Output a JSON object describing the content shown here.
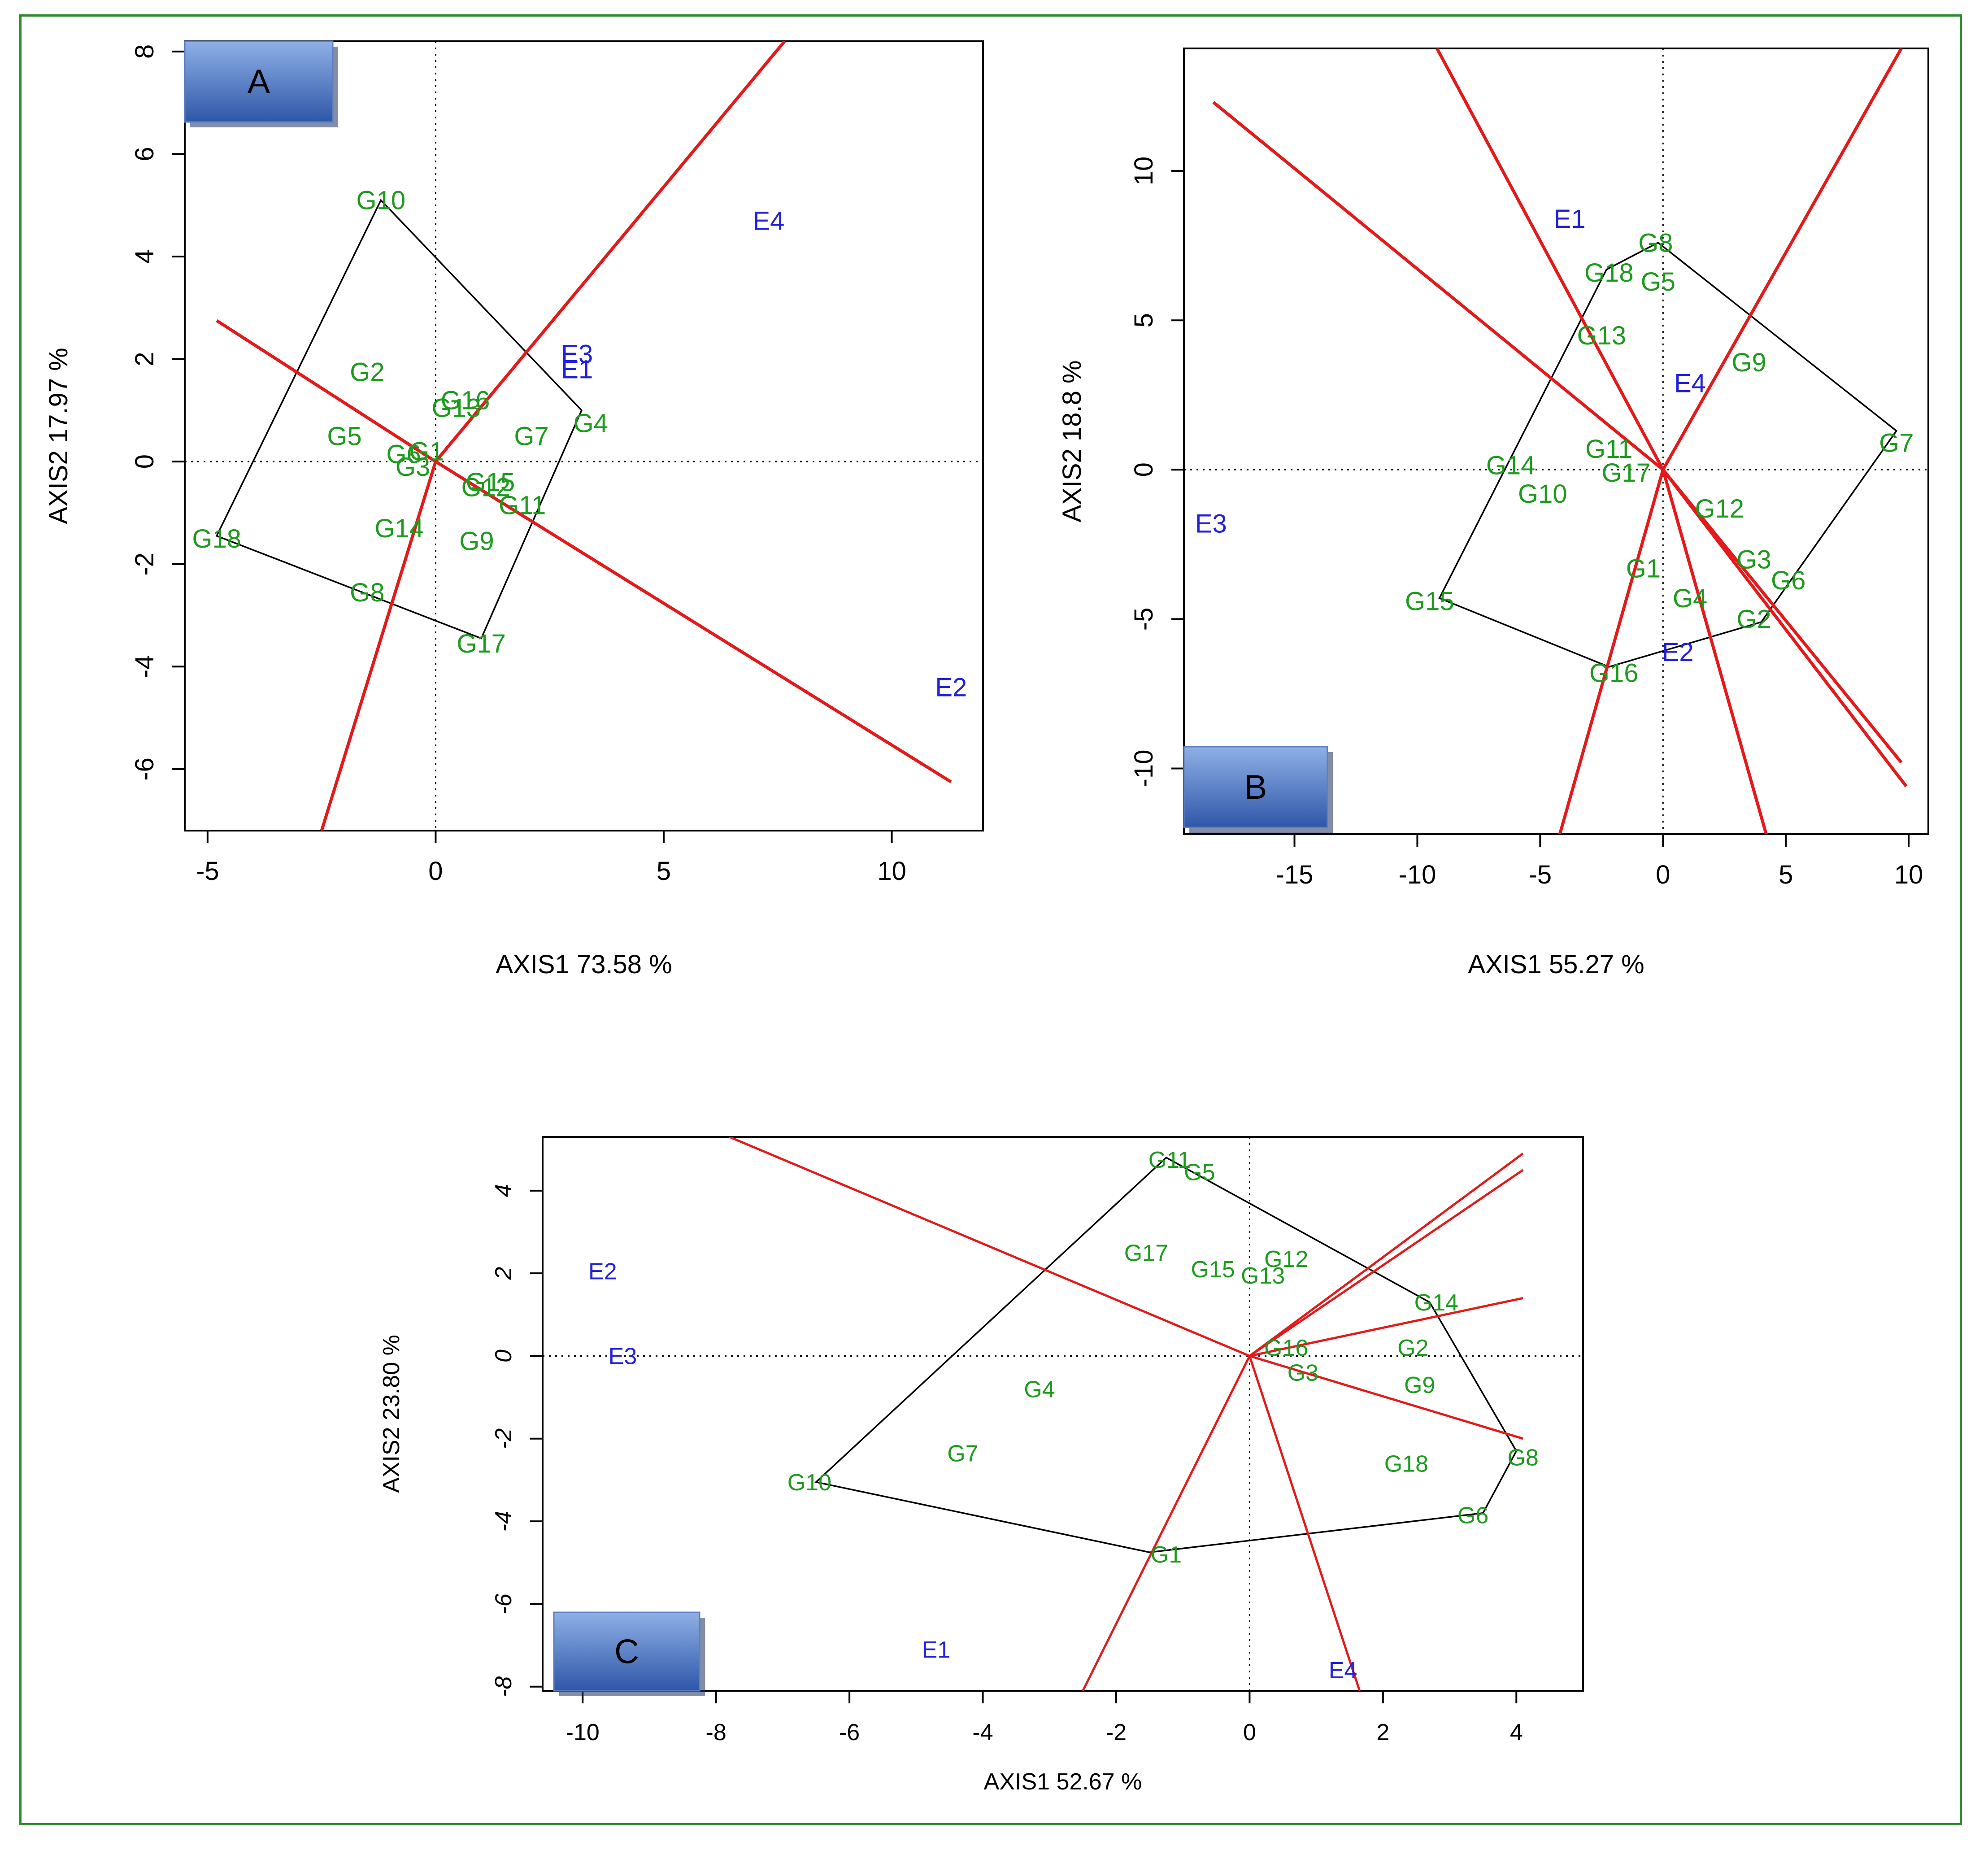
{
  "colors": {
    "frame": "#2e8b2e",
    "genotype": "#1e9a1e",
    "environment": "#2020dd",
    "vector": "#e41a1a",
    "hull": "#000000",
    "badge_top": "#8fb0e6",
    "badge_bottom": "#2e57a8"
  },
  "chart_data": [
    {
      "panel": "A",
      "type": "scatter",
      "subtype": "GGE biplot which-won-where",
      "xlabel": "AXIS1 73.58 %",
      "ylabel": "AXIS2 17.97 %",
      "xlim": [
        -5.5,
        12.0
      ],
      "ylim": [
        -7.2,
        8.2
      ],
      "xticks": [
        -5,
        0,
        5,
        10
      ],
      "yticks": [
        -6,
        -4,
        -2,
        0,
        2,
        4,
        6,
        8
      ],
      "genotypes": [
        {
          "label": "G10",
          "x": -1.2,
          "y": 5.1
        },
        {
          "label": "G2",
          "x": -1.5,
          "y": 1.75
        },
        {
          "label": "G16",
          "x": 0.65,
          "y": 1.2
        },
        {
          "label": "G13",
          "x": 0.45,
          "y": 1.05
        },
        {
          "label": "G5",
          "x": -2.0,
          "y": 0.5
        },
        {
          "label": "G7",
          "x": 2.1,
          "y": 0.5
        },
        {
          "label": "G4",
          "x": 3.4,
          "y": 0.75
        },
        {
          "label": "G6",
          "x": -0.7,
          "y": 0.15
        },
        {
          "label": "G1",
          "x": -0.2,
          "y": 0.2
        },
        {
          "label": "G3",
          "x": -0.5,
          "y": -0.1
        },
        {
          "label": "G15",
          "x": 1.2,
          "y": -0.4
        },
        {
          "label": "G12",
          "x": 1.1,
          "y": -0.5
        },
        {
          "label": "G11",
          "x": 1.9,
          "y": -0.85
        },
        {
          "label": "G14",
          "x": -0.8,
          "y": -1.3
        },
        {
          "label": "G9",
          "x": 0.9,
          "y": -1.55
        },
        {
          "label": "G18",
          "x": -4.8,
          "y": -1.5
        },
        {
          "label": "G8",
          "x": -1.5,
          "y": -2.55
        },
        {
          "label": "G17",
          "x": 1.0,
          "y": -3.55
        }
      ],
      "environments": [
        {
          "label": "E4",
          "x": 7.3,
          "y": 4.7
        },
        {
          "label": "E3",
          "x": 3.1,
          "y": 2.1
        },
        {
          "label": "E1",
          "x": 3.1,
          "y": 1.8
        },
        {
          "label": "E2",
          "x": 11.3,
          "y": -4.4
        }
      ],
      "hull": [
        [
          -1.2,
          5.1
        ],
        [
          3.2,
          1.0
        ],
        [
          1.0,
          -3.45
        ],
        [
          -4.8,
          -1.45
        ]
      ],
      "rays": [
        [
          7.65,
          8.2
        ],
        [
          -4.8,
          2.75
        ],
        [
          11.3,
          -6.25
        ],
        [
          -2.5,
          -7.2
        ]
      ]
    },
    {
      "panel": "B",
      "type": "scatter",
      "subtype": "GGE biplot which-won-where",
      "xlabel": "AXIS1 55.27 %",
      "ylabel": "AXIS2 18.8 %",
      "xlim": [
        -19.5,
        10.8
      ],
      "ylim": [
        -12.2,
        14.1
      ],
      "xticks": [
        -15,
        -10,
        -5,
        0,
        5,
        10
      ],
      "yticks": [
        -10,
        -5,
        0,
        5,
        10
      ],
      "genotypes": [
        {
          "label": "G8",
          "x": -0.3,
          "y": 7.6
        },
        {
          "label": "G18",
          "x": -2.2,
          "y": 6.6
        },
        {
          "label": "G5",
          "x": -0.2,
          "y": 6.3
        },
        {
          "label": "G13",
          "x": -2.5,
          "y": 4.5
        },
        {
          "label": "G9",
          "x": 3.5,
          "y": 3.6
        },
        {
          "label": "G7",
          "x": 9.5,
          "y": 0.9
        },
        {
          "label": "G11",
          "x": -2.2,
          "y": 0.7
        },
        {
          "label": "G17",
          "x": -1.5,
          "y": -0.1
        },
        {
          "label": "G14",
          "x": -6.2,
          "y": 0.15
        },
        {
          "label": "G10",
          "x": -4.9,
          "y": -0.8
        },
        {
          "label": "G12",
          "x": 2.3,
          "y": -1.3
        },
        {
          "label": "G3",
          "x": 3.7,
          "y": -3.0
        },
        {
          "label": "G6",
          "x": 5.1,
          "y": -3.7
        },
        {
          "label": "G1",
          "x": -0.8,
          "y": -3.3
        },
        {
          "label": "G4",
          "x": 1.1,
          "y": -4.3
        },
        {
          "label": "G2",
          "x": 3.7,
          "y": -5.0
        },
        {
          "label": "G15",
          "x": -9.5,
          "y": -4.4
        },
        {
          "label": "G16",
          "x": -2.0,
          "y": -6.8
        }
      ],
      "environments": [
        {
          "label": "E1",
          "x": -3.8,
          "y": 8.4
        },
        {
          "label": "E4",
          "x": 1.1,
          "y": 2.9
        },
        {
          "label": "E3",
          "x": -18.4,
          "y": -1.8
        },
        {
          "label": "E2",
          "x": 0.6,
          "y": -6.1
        }
      ],
      "hull": [
        [
          -0.2,
          7.6
        ],
        [
          9.5,
          1.3
        ],
        [
          4.0,
          -5.1
        ],
        [
          -2.2,
          -6.6
        ],
        [
          -9.1,
          -4.3
        ],
        [
          -2.3,
          6.7
        ]
      ],
      "rays": [
        [
          9.7,
          14.1
        ],
        [
          -9.2,
          14.1
        ],
        [
          -18.3,
          12.3
        ],
        [
          9.7,
          -9.8
        ],
        [
          9.9,
          -10.6
        ],
        [
          -4.2,
          -12.2
        ],
        [
          4.2,
          -12.2
        ]
      ]
    },
    {
      "panel": "C",
      "type": "scatter",
      "subtype": "GGE biplot which-won-where",
      "xlabel": "AXIS1 52.67 %",
      "ylabel": "AXIS2 23.80 %",
      "xlim": [
        -10.6,
        5.0
      ],
      "ylim": [
        -8.1,
        5.3
      ],
      "xticks": [
        -10,
        -8,
        -6,
        -4,
        -2,
        0,
        2,
        4
      ],
      "yticks": [
        -8,
        -6,
        -4,
        -2,
        0,
        2,
        4
      ],
      "genotypes": [
        {
          "label": "G11",
          "x": -1.2,
          "y": 4.75
        },
        {
          "label": "G5",
          "x": -0.75,
          "y": 4.45
        },
        {
          "label": "G17",
          "x": -1.55,
          "y": 2.5
        },
        {
          "label": "G15",
          "x": -0.55,
          "y": 2.1
        },
        {
          "label": "G12",
          "x": 0.55,
          "y": 2.35
        },
        {
          "label": "G13",
          "x": 0.2,
          "y": 1.95
        },
        {
          "label": "G14",
          "x": 2.8,
          "y": 1.3
        },
        {
          "label": "G16",
          "x": 0.55,
          "y": 0.2
        },
        {
          "label": "G2",
          "x": 2.45,
          "y": 0.2
        },
        {
          "label": "G3",
          "x": 0.8,
          "y": -0.4
        },
        {
          "label": "G9",
          "x": 2.55,
          "y": -0.7
        },
        {
          "label": "G4",
          "x": -3.15,
          "y": -0.8
        },
        {
          "label": "G7",
          "x": -4.3,
          "y": -2.35
        },
        {
          "label": "G18",
          "x": 2.35,
          "y": -2.6
        },
        {
          "label": "G8",
          "x": 4.1,
          "y": -2.45
        },
        {
          "label": "G10",
          "x": -6.6,
          "y": -3.05
        },
        {
          "label": "G6",
          "x": 3.35,
          "y": -3.85
        },
        {
          "label": "G1",
          "x": -1.25,
          "y": -4.8
        }
      ],
      "environments": [
        {
          "label": "E2",
          "x": -9.7,
          "y": 2.05
        },
        {
          "label": "E3",
          "x": -9.4,
          "y": 0.0
        },
        {
          "label": "E1",
          "x": -4.7,
          "y": -7.1
        },
        {
          "label": "E4",
          "x": 1.4,
          "y": -7.6
        }
      ],
      "hull": [
        [
          -1.25,
          4.8
        ],
        [
          2.7,
          1.3
        ],
        [
          4.0,
          -2.3
        ],
        [
          3.5,
          -3.8
        ],
        [
          -1.5,
          -4.75
        ],
        [
          -6.5,
          -3.05
        ]
      ],
      "rays": [
        [
          -7.8,
          5.3
        ],
        [
          4.1,
          4.9
        ],
        [
          4.1,
          4.5
        ],
        [
          4.1,
          1.4
        ],
        [
          4.1,
          -2.0
        ],
        [
          -2.5,
          -8.1
        ],
        [
          1.65,
          -8.1
        ]
      ]
    }
  ]
}
